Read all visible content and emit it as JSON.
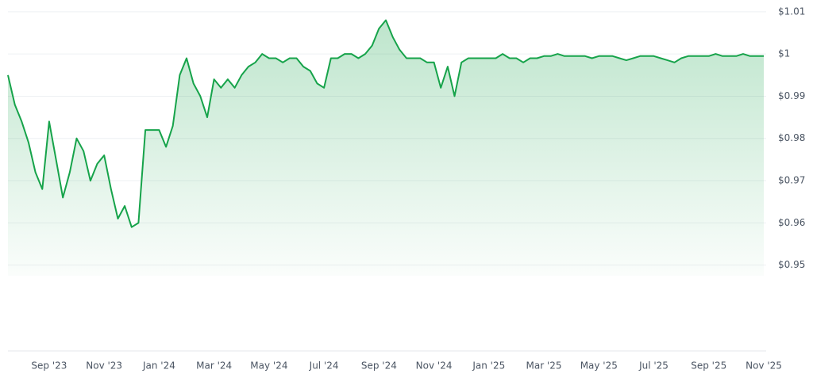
{
  "chart_data": {
    "type": "line",
    "categories": [
      null,
      null,
      null,
      null,
      null,
      null,
      "Sep '23",
      null,
      null,
      null,
      null,
      null,
      null,
      null,
      "Nov '23",
      null,
      null,
      null,
      null,
      null,
      null,
      null,
      "Jan '24",
      null,
      null,
      null,
      null,
      null,
      null,
      null,
      "Mar '24",
      null,
      null,
      null,
      null,
      null,
      null,
      null,
      "May '24",
      null,
      null,
      null,
      null,
      null,
      null,
      null,
      "Jul '24",
      null,
      null,
      null,
      null,
      null,
      null,
      null,
      "Sep '24",
      null,
      null,
      null,
      null,
      null,
      null,
      null,
      "Nov '24",
      null,
      null,
      null,
      null,
      null,
      null,
      null,
      "Jan '25",
      null,
      null,
      null,
      null,
      null,
      null,
      null,
      "Mar '25",
      null,
      null,
      null,
      null,
      null,
      null,
      null,
      "May '25",
      null,
      null,
      null,
      null,
      null,
      null,
      null,
      "Jul '25",
      null,
      null,
      null,
      null,
      null,
      null,
      null,
      "Sep '25",
      null,
      null,
      null,
      null,
      null,
      null,
      null,
      "Nov '25"
    ],
    "values": [
      0.995,
      0.988,
      0.984,
      0.979,
      0.972,
      0.968,
      0.984,
      0.975,
      0.966,
      0.972,
      0.98,
      0.977,
      0.97,
      0.974,
      0.976,
      0.968,
      0.961,
      0.964,
      0.959,
      0.96,
      0.982,
      0.982,
      0.982,
      0.978,
      0.983,
      0.995,
      0.999,
      0.993,
      0.99,
      0.985,
      0.994,
      0.992,
      0.994,
      0.992,
      0.995,
      0.997,
      0.998,
      1.0,
      0.999,
      0.999,
      0.998,
      0.999,
      0.999,
      0.997,
      0.996,
      0.993,
      0.992,
      0.999,
      0.999,
      1.0,
      1.0,
      0.999,
      1.0,
      1.002,
      1.006,
      1.008,
      1.004,
      1.001,
      0.999,
      0.999,
      0.999,
      0.998,
      0.998,
      0.992,
      0.997,
      0.99,
      0.998,
      0.999,
      0.999,
      0.999,
      0.999,
      0.999,
      1.0,
      0.999,
      0.999,
      0.998,
      0.999,
      0.999,
      0.9995,
      0.9995,
      1.0,
      0.9995,
      0.9995,
      0.9995,
      0.9995,
      0.999,
      0.9995,
      0.9995,
      0.9995,
      0.999,
      0.9985,
      0.999,
      0.9995,
      0.9995,
      0.9995,
      0.999,
      0.9985,
      0.998,
      0.999,
      0.9995,
      0.9995,
      0.9995,
      0.9995,
      1.0,
      0.9995,
      0.9995,
      0.9995,
      1.0,
      0.9995,
      0.9995,
      0.9995
    ],
    "color": "#16a34a",
    "ylim": [
      0.9475,
      1.0115
    ],
    "yticks": [
      {
        "value": 0.95,
        "label": "$0.95"
      },
      {
        "value": 0.96,
        "label": "$0.96"
      },
      {
        "value": 0.97,
        "label": "$0.97"
      },
      {
        "value": 0.98,
        "label": "$0.98"
      },
      {
        "value": 0.99,
        "label": "$0.99"
      },
      {
        "value": 1,
        "label": "$1"
      },
      {
        "value": 1.01,
        "label": "$1.01"
      }
    ],
    "grid": true
  }
}
